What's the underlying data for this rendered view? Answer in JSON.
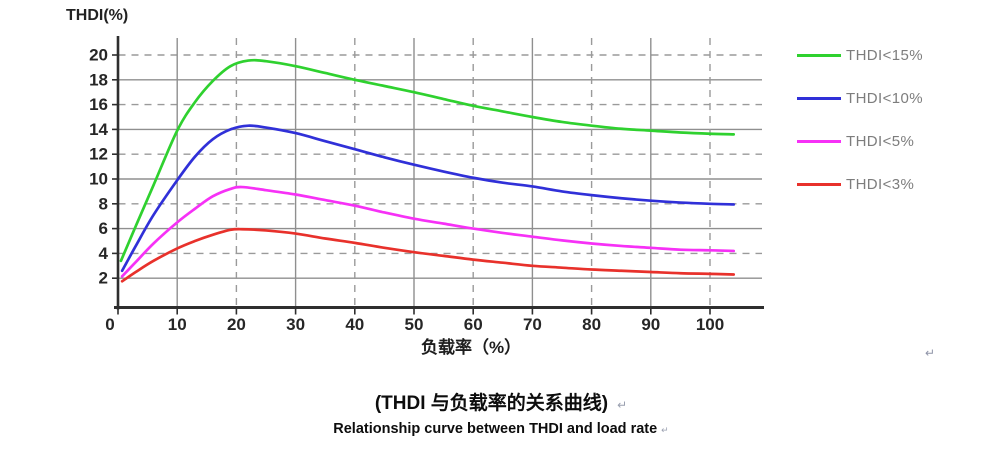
{
  "chart": {
    "y_axis_title": "THDI(%)",
    "x_axis_label": "负载率（%）"
  },
  "caption": {
    "zh": "(THDI 与负载率的关系曲线)",
    "en": "Relationship curve between THDI and load rate"
  },
  "marks": {
    "return_mark": "↵",
    "small_mark": "↵"
  },
  "colors": {
    "axis": "#2e2e2e",
    "grid_solid": "#8f8f8f",
    "grid_dashed": "#9a9a9a",
    "tick_text": "#262626",
    "legend_text": "#7d7d7d"
  },
  "chart_data": {
    "type": "line",
    "title": "(THDI 与负载率的关系曲线)",
    "subtitle": "Relationship curve between THDI and load rate",
    "xlabel": "负载率（%）",
    "ylabel": "THDI(%)",
    "xlim": [
      0,
      109
    ],
    "ylim": [
      0,
      21.8
    ],
    "x_ticks": [
      0,
      10,
      20,
      30,
      40,
      50,
      60,
      70,
      80,
      90,
      100
    ],
    "y_ticks": [
      2,
      4,
      6,
      8,
      10,
      12,
      14,
      16,
      18,
      20
    ],
    "grid": {
      "solid_y": [
        2,
        6,
        10,
        14,
        18
      ],
      "dashed_y": [
        4,
        8,
        12,
        16,
        20
      ],
      "solid_x": [
        10,
        30,
        50,
        70,
        90
      ],
      "dashed_x": [
        20,
        40,
        60,
        80,
        100
      ]
    },
    "legend_position": "right",
    "series": [
      {
        "name": "THDI<15%",
        "color": "#2fd12f",
        "points": [
          [
            0.5,
            3.4
          ],
          [
            3,
            6.2
          ],
          [
            6,
            9.5
          ],
          [
            10,
            13.9
          ],
          [
            13,
            16.2
          ],
          [
            16,
            17.9
          ],
          [
            19,
            19.1
          ],
          [
            22,
            19.55
          ],
          [
            25,
            19.5
          ],
          [
            30,
            19.1
          ],
          [
            35,
            18.55
          ],
          [
            40,
            18.0
          ],
          [
            45,
            17.5
          ],
          [
            50,
            17.0
          ],
          [
            55,
            16.45
          ],
          [
            60,
            15.9
          ],
          [
            65,
            15.45
          ],
          [
            70,
            15.0
          ],
          [
            75,
            14.6
          ],
          [
            80,
            14.3
          ],
          [
            85,
            14.05
          ],
          [
            90,
            13.9
          ],
          [
            95,
            13.75
          ],
          [
            100,
            13.65
          ],
          [
            104,
            13.6
          ]
        ]
      },
      {
        "name": "THDI<10%",
        "color": "#3030d8",
        "points": [
          [
            0.7,
            2.6
          ],
          [
            3,
            4.6
          ],
          [
            6,
            7.1
          ],
          [
            10,
            9.9
          ],
          [
            13,
            11.8
          ],
          [
            16,
            13.2
          ],
          [
            19,
            14.0
          ],
          [
            22,
            14.3
          ],
          [
            25,
            14.15
          ],
          [
            30,
            13.7
          ],
          [
            35,
            13.05
          ],
          [
            40,
            12.4
          ],
          [
            45,
            11.75
          ],
          [
            50,
            11.15
          ],
          [
            55,
            10.6
          ],
          [
            60,
            10.1
          ],
          [
            65,
            9.7
          ],
          [
            70,
            9.4
          ],
          [
            75,
            9.0
          ],
          [
            80,
            8.7
          ],
          [
            85,
            8.45
          ],
          [
            90,
            8.25
          ],
          [
            95,
            8.1
          ],
          [
            100,
            8.0
          ],
          [
            104,
            7.95
          ]
        ]
      },
      {
        "name": "THDI<5%",
        "color": "#f631f6",
        "points": [
          [
            0.7,
            2.15
          ],
          [
            3,
            3.3
          ],
          [
            6,
            4.8
          ],
          [
            10,
            6.5
          ],
          [
            13,
            7.6
          ],
          [
            16,
            8.6
          ],
          [
            19,
            9.2
          ],
          [
            21,
            9.35
          ],
          [
            25,
            9.1
          ],
          [
            30,
            8.75
          ],
          [
            35,
            8.3
          ],
          [
            40,
            7.85
          ],
          [
            45,
            7.3
          ],
          [
            50,
            6.8
          ],
          [
            55,
            6.4
          ],
          [
            60,
            6.0
          ],
          [
            65,
            5.65
          ],
          [
            70,
            5.35
          ],
          [
            75,
            5.05
          ],
          [
            80,
            4.8
          ],
          [
            85,
            4.6
          ],
          [
            90,
            4.45
          ],
          [
            95,
            4.3
          ],
          [
            100,
            4.25
          ],
          [
            104,
            4.2
          ]
        ]
      },
      {
        "name": "THDI<3%",
        "color": "#e8312b",
        "points": [
          [
            0.7,
            1.75
          ],
          [
            3,
            2.5
          ],
          [
            6,
            3.4
          ],
          [
            10,
            4.4
          ],
          [
            13,
            5.0
          ],
          [
            16,
            5.5
          ],
          [
            19,
            5.9
          ],
          [
            21,
            5.95
          ],
          [
            25,
            5.85
          ],
          [
            30,
            5.6
          ],
          [
            35,
            5.2
          ],
          [
            40,
            4.85
          ],
          [
            45,
            4.45
          ],
          [
            50,
            4.1
          ],
          [
            55,
            3.8
          ],
          [
            60,
            3.5
          ],
          [
            65,
            3.25
          ],
          [
            70,
            3.0
          ],
          [
            75,
            2.85
          ],
          [
            80,
            2.7
          ],
          [
            85,
            2.6
          ],
          [
            90,
            2.5
          ],
          [
            95,
            2.4
          ],
          [
            100,
            2.35
          ],
          [
            104,
            2.3
          ]
        ]
      }
    ]
  }
}
